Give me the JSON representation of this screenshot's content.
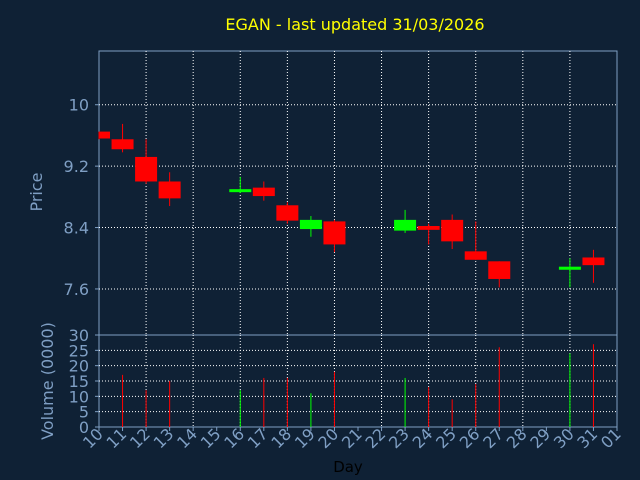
{
  "chart_data": [
    {
      "type": "candlestick",
      "title": "EGAN - last updated 31/03/2026",
      "xlabel": "Day",
      "ylabel": "Price",
      "x_ticks": [
        "10",
        "11",
        "12",
        "13",
        "14",
        "15",
        "16",
        "17",
        "18",
        "19",
        "20",
        "21",
        "22",
        "23",
        "24",
        "25",
        "26",
        "27",
        "28",
        "29",
        "30",
        "31",
        "01"
      ],
      "y_ticks": [
        "7.6",
        "8.4",
        "9.2",
        "10"
      ],
      "ylim": [
        7.0,
        10.7
      ],
      "grid": true,
      "colors": {
        "up": "#00ff00",
        "down": "#ff0000",
        "wick_up": "#00ff00",
        "wick_down": "#ff0000"
      },
      "candles": [
        {
          "day": "10",
          "open": 9.65,
          "high": 9.65,
          "low": 9.55,
          "close": 9.56
        },
        {
          "day": "11",
          "open": 9.55,
          "high": 9.75,
          "low": 9.38,
          "close": 9.42
        },
        {
          "day": "12",
          "open": 9.32,
          "high": 9.55,
          "low": 8.97,
          "close": 9.0
        },
        {
          "day": "13",
          "open": 9.0,
          "high": 9.12,
          "low": 8.68,
          "close": 8.78
        },
        {
          "day": "16",
          "open": 8.88,
          "high": 9.06,
          "low": 8.85,
          "close": 8.9
        },
        {
          "day": "17",
          "open": 8.92,
          "high": 9.0,
          "low": 8.75,
          "close": 8.81
        },
        {
          "day": "18",
          "open": 8.69,
          "high": 8.73,
          "low": 8.45,
          "close": 8.49
        },
        {
          "day": "19",
          "open": 8.38,
          "high": 8.55,
          "low": 8.28,
          "close": 8.5
        },
        {
          "day": "20",
          "open": 8.48,
          "high": 8.5,
          "low": 8.08,
          "close": 8.18
        },
        {
          "day": "23",
          "open": 8.36,
          "high": 8.63,
          "low": 8.33,
          "close": 8.5
        },
        {
          "day": "24",
          "open": 8.42,
          "high": 8.45,
          "low": 8.18,
          "close": 8.37
        },
        {
          "day": "25",
          "open": 8.5,
          "high": 8.57,
          "low": 8.12,
          "close": 8.22
        },
        {
          "day": "26",
          "open": 8.09,
          "high": 8.48,
          "low": 7.98,
          "close": 7.98
        },
        {
          "day": "27",
          "open": 7.96,
          "high": 7.96,
          "low": 7.62,
          "close": 7.73
        },
        {
          "day": "30",
          "open": 7.85,
          "high": 8.0,
          "low": 7.62,
          "close": 7.89
        },
        {
          "day": "31",
          "open": 8.01,
          "high": 8.11,
          "low": 7.68,
          "close": 7.91
        }
      ]
    },
    {
      "type": "bar",
      "xlabel": "Day",
      "ylabel": "Volume (0000)",
      "y_ticks": [
        "0",
        "5",
        "10",
        "15",
        "20",
        "25",
        "30"
      ],
      "ylim": [
        0,
        30
      ],
      "grid": true,
      "bars": [
        {
          "day": "11",
          "value": 17,
          "color": "#ff0000"
        },
        {
          "day": "12",
          "value": 12,
          "color": "#ff0000"
        },
        {
          "day": "13",
          "value": 15,
          "color": "#ff0000"
        },
        {
          "day": "16",
          "value": 12,
          "color": "#00ff00"
        },
        {
          "day": "17",
          "value": 16,
          "color": "#ff0000"
        },
        {
          "day": "18",
          "value": 16,
          "color": "#ff0000"
        },
        {
          "day": "19",
          "value": 11,
          "color": "#00ff00"
        },
        {
          "day": "20",
          "value": 18,
          "color": "#ff0000"
        },
        {
          "day": "23",
          "value": 16,
          "color": "#00ff00"
        },
        {
          "day": "24",
          "value": 13,
          "color": "#ff0000"
        },
        {
          "day": "25",
          "value": 9,
          "color": "#ff0000"
        },
        {
          "day": "26",
          "value": 14,
          "color": "#ff0000"
        },
        {
          "day": "27",
          "value": 26,
          "color": "#ff0000"
        },
        {
          "day": "30",
          "value": 24,
          "color": "#00ff00"
        },
        {
          "day": "31",
          "value": 27,
          "color": "#ff0000"
        }
      ]
    }
  ]
}
